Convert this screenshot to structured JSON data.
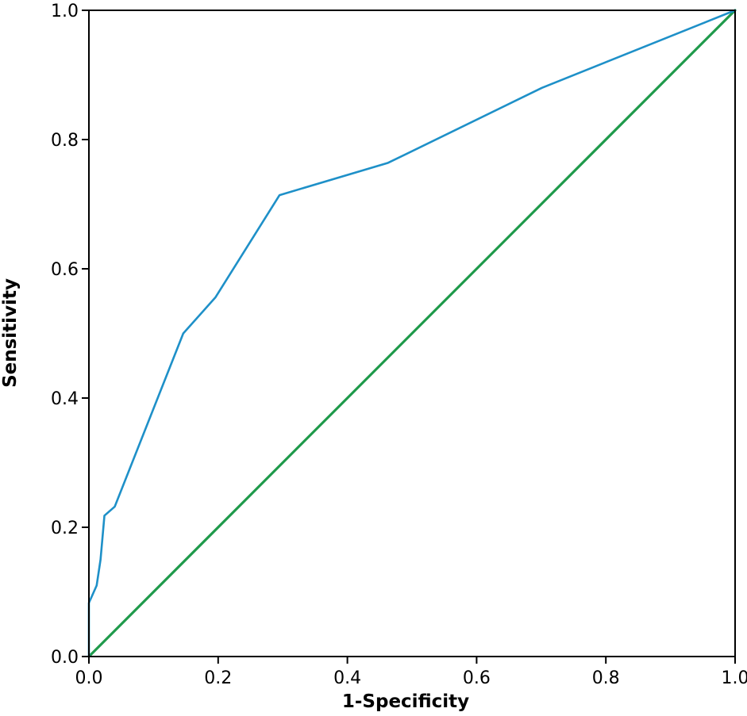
{
  "colors": {
    "roc_curve": "#1e90c8",
    "reference_line": "#1f9a4b",
    "axis": "#000000"
  },
  "chart_data": {
    "type": "line",
    "title": "",
    "xlabel": "1-Specificity",
    "ylabel": "Sensitivity",
    "xlim": [
      0,
      1
    ],
    "ylim": [
      0,
      1
    ],
    "grid": false,
    "legend": "none",
    "x_ticks": [
      "0.0",
      "0.2",
      "0.4",
      "0.6",
      "0.8",
      "1.0"
    ],
    "y_ticks": [
      "0.0",
      "0.2",
      "0.4",
      "0.6",
      "0.8",
      "1.0"
    ],
    "series": [
      {
        "role": "roc-curve",
        "color": "#1e90c8",
        "points": [
          [
            0.0,
            0.0
          ],
          [
            0.0,
            0.083
          ],
          [
            0.012,
            0.11
          ],
          [
            0.018,
            0.15
          ],
          [
            0.024,
            0.218
          ],
          [
            0.04,
            0.232
          ],
          [
            0.146,
            0.5
          ],
          [
            0.196,
            0.556
          ],
          [
            0.295,
            0.714
          ],
          [
            0.463,
            0.764
          ],
          [
            0.701,
            0.88
          ],
          [
            1.0,
            1.0
          ]
        ]
      },
      {
        "role": "reference-line",
        "color": "#1f9a4b",
        "points": [
          [
            0.0,
            0.0
          ],
          [
            1.0,
            1.0
          ]
        ]
      }
    ]
  }
}
